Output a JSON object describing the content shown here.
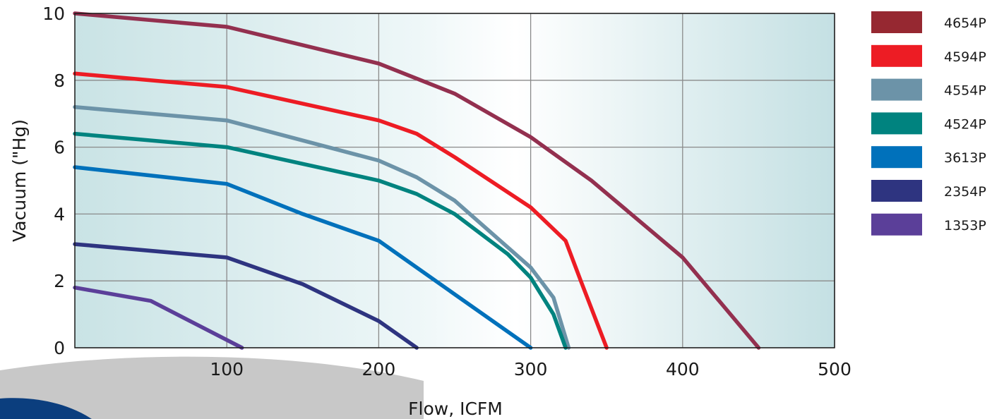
{
  "chart_data": {
    "type": "line",
    "title": "",
    "xlabel": "Flow, ICFM",
    "ylabel": "Vacuum (\"Hg)",
    "xlim": [
      0,
      500
    ],
    "ylim": [
      0,
      10
    ],
    "x_ticks": [
      "100",
      "200",
      "300",
      "400",
      "500"
    ],
    "y_ticks": [
      "0",
      "2",
      "4",
      "6",
      "8",
      "10"
    ],
    "grid": true,
    "legend_position": "right",
    "series": [
      {
        "name": "4654P",
        "color": "#962831",
        "line_color": "#93304f",
        "points": [
          [
            0,
            10.0
          ],
          [
            100,
            9.6
          ],
          [
            200,
            8.5
          ],
          [
            250,
            7.6
          ],
          [
            300,
            6.3
          ],
          [
            340,
            5.0
          ],
          [
            400,
            2.7
          ],
          [
            450,
            0
          ]
        ]
      },
      {
        "name": "4594P",
        "color": "#ed1c24",
        "line_color": "#ed1c24",
        "points": [
          [
            0,
            8.2
          ],
          [
            100,
            7.8
          ],
          [
            200,
            6.8
          ],
          [
            225,
            6.4
          ],
          [
            250,
            5.7
          ],
          [
            300,
            4.2
          ],
          [
            323,
            3.2
          ],
          [
            333,
            2.0
          ],
          [
            350,
            0
          ]
        ]
      },
      {
        "name": "4554P",
        "color": "#6c93a8",
        "line_color": "#6c93a8",
        "points": [
          [
            0,
            7.2
          ],
          [
            100,
            6.8
          ],
          [
            200,
            5.6
          ],
          [
            225,
            5.1
          ],
          [
            250,
            4.4
          ],
          [
            300,
            2.4
          ],
          [
            315,
            1.5
          ],
          [
            325,
            0
          ]
        ]
      },
      {
        "name": "4524P",
        "color": "#00837f",
        "line_color": "#00837f",
        "points": [
          [
            0,
            6.4
          ],
          [
            100,
            6.0
          ],
          [
            200,
            5.0
          ],
          [
            225,
            4.6
          ],
          [
            250,
            4.0
          ],
          [
            285,
            2.8
          ],
          [
            300,
            2.1
          ],
          [
            315,
            1.0
          ],
          [
            323,
            0
          ]
        ]
      },
      {
        "name": "3613P",
        "color": "#0071bb",
        "line_color": "#0071bb",
        "points": [
          [
            0,
            5.4
          ],
          [
            100,
            4.9
          ],
          [
            150,
            4.0
          ],
          [
            200,
            3.2
          ],
          [
            250,
            1.6
          ],
          [
            300,
            0
          ]
        ]
      },
      {
        "name": "2354P",
        "color": "#2e3480",
        "line_color": "#2e3480",
        "points": [
          [
            0,
            3.1
          ],
          [
            100,
            2.7
          ],
          [
            150,
            1.9
          ],
          [
            200,
            0.8
          ],
          [
            225,
            0
          ]
        ]
      },
      {
        "name": "1353P",
        "color": "#5b3f99",
        "line_color": "#5b3f99",
        "points": [
          [
            0,
            1.8
          ],
          [
            50,
            1.4
          ],
          [
            80,
            0.7
          ],
          [
            110,
            0
          ]
        ]
      }
    ]
  }
}
